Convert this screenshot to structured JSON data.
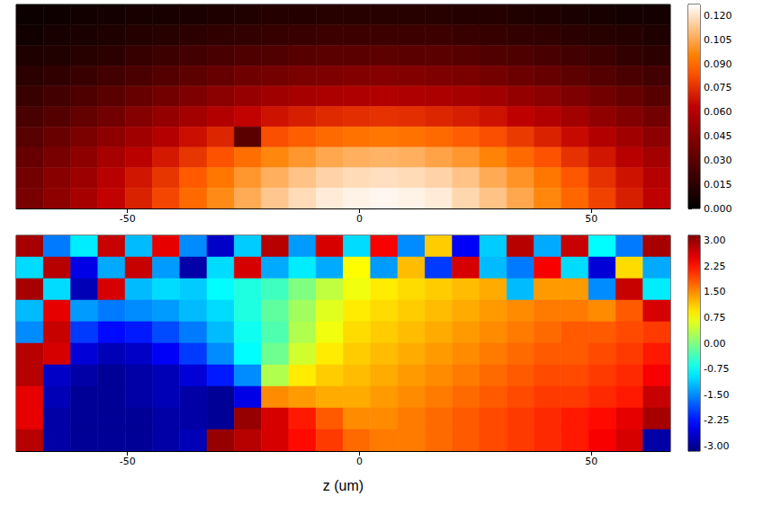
{
  "chart_data": [
    {
      "type": "heatmap",
      "xlim": [
        -74,
        67
      ],
      "xticks": [
        -50,
        0,
        50
      ],
      "tick_labels": "x",
      "colorbar": {
        "range": [
          0,
          0.127
        ],
        "ticks": [
          {
            "value": 0,
            "label": "0.000"
          },
          {
            "value": 0.015,
            "label": "0.015"
          },
          {
            "value": 0.03,
            "label": "0.030"
          },
          {
            "value": 0.045,
            "label": "0.045"
          },
          {
            "value": 0.06,
            "label": "0.060"
          },
          {
            "value": 0.075,
            "label": "0.075"
          },
          {
            "value": 0.09,
            "label": "0.090"
          },
          {
            "value": 0.105,
            "label": "0.105"
          },
          {
            "value": 0.12,
            "label": "0.120"
          }
        ]
      },
      "cells": [
        [
          0.004,
          0.005,
          0.006,
          0.007,
          0.008,
          0.008,
          0.009,
          0.01,
          0.011,
          0.012,
          0.012,
          0.013,
          0.013,
          0.013,
          0.013,
          0.013,
          0.012,
          0.012,
          0.011,
          0.01,
          0.009,
          0.008,
          0.007,
          0.007
        ],
        [
          0.006,
          0.008,
          0.009,
          0.01,
          0.012,
          0.013,
          0.015,
          0.016,
          0.017,
          0.018,
          0.019,
          0.02,
          0.02,
          0.02,
          0.02,
          0.02,
          0.019,
          0.018,
          0.017,
          0.016,
          0.014,
          0.013,
          0.012,
          0.01
        ],
        [
          0.01,
          0.011,
          0.013,
          0.015,
          0.018,
          0.02,
          0.022,
          0.024,
          0.026,
          0.027,
          0.029,
          0.03,
          0.03,
          0.031,
          0.03,
          0.03,
          0.029,
          0.027,
          0.026,
          0.024,
          0.022,
          0.02,
          0.017,
          0.015
        ],
        [
          0.014,
          0.016,
          0.019,
          0.022,
          0.025,
          0.028,
          0.031,
          0.034,
          0.037,
          0.039,
          0.041,
          0.042,
          0.043,
          0.044,
          0.043,
          0.042,
          0.041,
          0.039,
          0.036,
          0.034,
          0.031,
          0.028,
          0.025,
          0.022
        ],
        [
          0.019,
          0.022,
          0.026,
          0.03,
          0.034,
          0.038,
          0.042,
          0.046,
          0.05,
          0.053,
          0.055,
          0.057,
          0.058,
          0.059,
          0.058,
          0.057,
          0.055,
          0.053,
          0.049,
          0.046,
          0.042,
          0.038,
          0.034,
          0.029
        ],
        [
          0.024,
          0.028,
          0.033,
          0.038,
          0.044,
          0.049,
          0.054,
          0.059,
          0.064,
          0.068,
          0.071,
          0.074,
          0.075,
          0.076,
          0.075,
          0.073,
          0.071,
          0.068,
          0.063,
          0.059,
          0.054,
          0.048,
          0.043,
          0.038
        ],
        [
          0.029,
          0.035,
          0.041,
          0.047,
          0.053,
          0.06,
          0.067,
          0.073,
          0.03,
          0.083,
          0.087,
          0.09,
          0.092,
          0.093,
          0.092,
          0.09,
          0.087,
          0.083,
          0.078,
          0.072,
          0.066,
          0.059,
          0.053,
          0.046
        ],
        [
          0.034,
          0.04,
          0.047,
          0.055,
          0.062,
          0.07,
          0.077,
          0.084,
          0.091,
          0.097,
          0.101,
          0.105,
          0.107,
          0.108,
          0.107,
          0.104,
          0.101,
          0.096,
          0.09,
          0.084,
          0.076,
          0.069,
          0.061,
          0.054
        ],
        [
          0.038,
          0.045,
          0.052,
          0.061,
          0.069,
          0.077,
          0.086,
          0.093,
          0.101,
          0.107,
          0.112,
          0.116,
          0.118,
          0.119,
          0.118,
          0.116,
          0.112,
          0.106,
          0.1,
          0.093,
          0.085,
          0.076,
          0.068,
          0.06
        ],
        [
          0.04,
          0.047,
          0.055,
          0.064,
          0.072,
          0.081,
          0.09,
          0.098,
          0.106,
          0.113,
          0.118,
          0.122,
          0.124,
          0.125,
          0.124,
          0.122,
          0.117,
          0.112,
          0.105,
          0.097,
          0.089,
          0.08,
          0.071,
          0.063
        ]
      ]
    },
    {
      "type": "heatmap",
      "x_label": "z (um)",
      "xlim": [
        -74,
        67
      ],
      "xticks": [
        -50,
        0,
        50
      ],
      "tick_labels": "x",
      "colorbar": {
        "range": [
          -3.14,
          3.14
        ],
        "ticks": [
          {
            "value": -3,
            "label": "-3.00"
          },
          {
            "value": -2.25,
            "label": "-2.25"
          },
          {
            "value": -1.5,
            "label": "-1.50"
          },
          {
            "value": -0.75,
            "label": "-0.75"
          },
          {
            "value": 0,
            "label": "0.00"
          },
          {
            "value": 0.75,
            "label": "0.75"
          },
          {
            "value": 1.5,
            "label": "1.50"
          },
          {
            "value": 2.25,
            "label": "2.25"
          },
          {
            "value": 3,
            "label": "3.00"
          }
        ]
      },
      "cells": [
        [
          2.9,
          -1.6,
          -0.9,
          2.7,
          -1.2,
          2.5,
          -1.5,
          -2.7,
          -1.1,
          2.8,
          -1.4,
          2.6,
          -1.0,
          2.4,
          -1.5,
          1.1,
          -2.4,
          -1.1,
          2.8,
          -1.3,
          2.7,
          -0.8,
          -1.6,
          2.9
        ],
        [
          -1.0,
          2.8,
          -2.5,
          -1.3,
          2.7,
          -1.4,
          -2.9,
          -1.0,
          2.6,
          -1.3,
          -0.9,
          -1.3,
          0.8,
          -1.4,
          1.2,
          -2.0,
          2.6,
          -1.2,
          -1.6,
          2.4,
          -1.0,
          -2.6,
          1.0,
          -1.3
        ],
        [
          2.9,
          -1.0,
          -2.8,
          2.6,
          -1.2,
          -1.0,
          -1.1,
          -0.8,
          -0.6,
          -0.4,
          0.0,
          0.4,
          0.7,
          0.9,
          1.0,
          1.1,
          1.2,
          1.3,
          -1.2,
          1.4,
          1.4,
          -1.5,
          2.7,
          -0.9
        ],
        [
          -1.2,
          2.5,
          -1.4,
          -1.6,
          -1.5,
          -1.4,
          -1.2,
          -1.0,
          -0.6,
          -0.2,
          0.2,
          0.6,
          0.9,
          1.0,
          1.1,
          1.2,
          1.3,
          1.4,
          1.5,
          1.6,
          1.6,
          1.5,
          1.8,
          2.6
        ],
        [
          -1.5,
          2.7,
          -2.0,
          -2.3,
          -2.2,
          -1.9,
          -1.6,
          -1.2,
          -0.7,
          -0.3,
          0.3,
          0.7,
          1.0,
          1.1,
          1.2,
          1.3,
          1.4,
          1.5,
          1.6,
          1.7,
          1.8,
          1.8,
          1.9,
          2.0
        ],
        [
          2.8,
          2.6,
          -2.6,
          -2.8,
          -2.7,
          -2.4,
          -2.0,
          -1.5,
          -0.8,
          -0.1,
          0.5,
          0.9,
          1.1,
          1.2,
          1.3,
          1.4,
          1.5,
          1.6,
          1.7,
          1.8,
          1.8,
          1.9,
          2.0,
          2.2
        ],
        [
          2.8,
          -2.7,
          -2.9,
          -3.0,
          -2.9,
          -2.8,
          -2.6,
          -2.2,
          -1.5,
          0.3,
          0.9,
          1.1,
          1.2,
          1.3,
          1.4,
          1.5,
          1.6,
          1.7,
          1.8,
          1.9,
          1.9,
          2.0,
          2.1,
          2.4
        ],
        [
          2.5,
          -2.8,
          -3.0,
          -3.0,
          -2.9,
          -2.8,
          -2.9,
          -3.0,
          -2.5,
          1.5,
          1.4,
          1.3,
          1.3,
          1.4,
          1.5,
          1.6,
          1.7,
          1.8,
          1.9,
          2.0,
          2.0,
          2.1,
          2.2,
          2.7
        ],
        [
          2.5,
          -2.9,
          -3.0,
          -3.0,
          -3.0,
          -2.9,
          -2.9,
          -3.0,
          3.0,
          2.6,
          2.2,
          1.8,
          1.5,
          1.5,
          1.6,
          1.7,
          1.8,
          1.9,
          2.0,
          2.1,
          2.2,
          2.3,
          2.5,
          2.9
        ],
        [
          2.8,
          -2.9,
          -3.0,
          -3.0,
          -3.0,
          -2.9,
          -2.8,
          3.0,
          2.8,
          2.6,
          2.3,
          2.0,
          1.7,
          1.6,
          1.6,
          1.7,
          1.8,
          1.9,
          2.0,
          2.1,
          2.2,
          2.4,
          2.6,
          -2.9
        ]
      ]
    }
  ]
}
